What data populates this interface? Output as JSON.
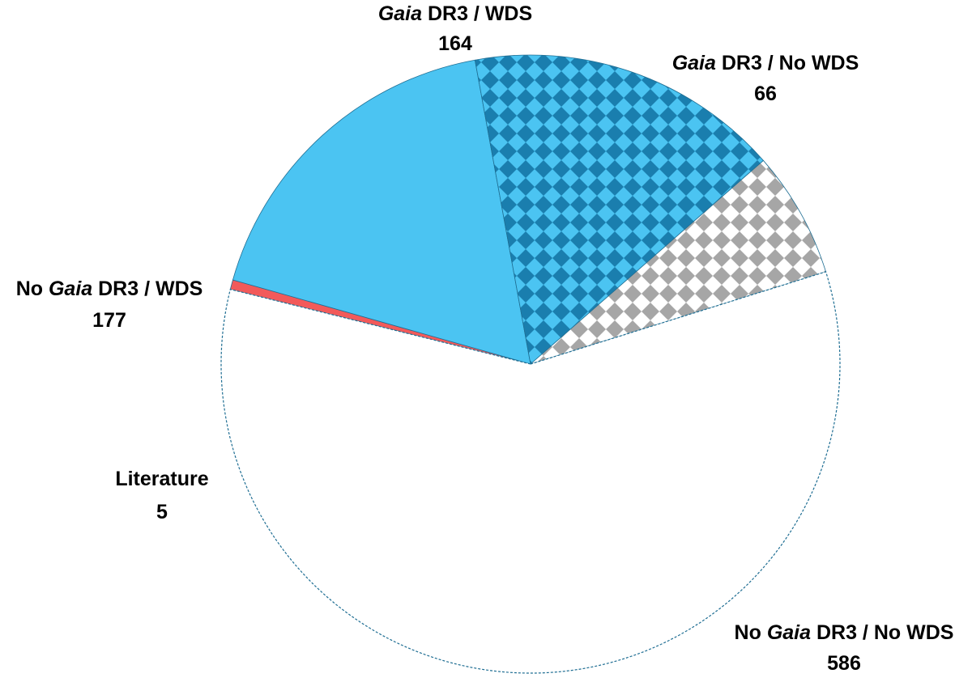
{
  "chart_data": {
    "type": "pie",
    "title": "",
    "start_angle_deg": -166,
    "direction": "clockwise",
    "slices": [
      {
        "key": "literature",
        "label_plain": "Literature",
        "label_parts": [
          {
            "text": "Literature",
            "italic": false
          }
        ],
        "value": 5,
        "value_label": "5",
        "color": "#f25a5a",
        "pattern": "solid"
      },
      {
        "key": "no-gaia-wds",
        "label_plain": "No Gaia DR3 / WDS",
        "label_parts": [
          {
            "text": "No ",
            "italic": false
          },
          {
            "text": "Gaia",
            "italic": true
          },
          {
            "text": " DR3 / WDS",
            "italic": false
          }
        ],
        "value": 177,
        "value_label": "177",
        "color": "#4bc4f2",
        "pattern": "solid"
      },
      {
        "key": "gaia-wds",
        "label_plain": "Gaia DR3 / WDS",
        "label_parts": [
          {
            "text": "Gaia",
            "italic": true
          },
          {
            "text": " DR3 / WDS",
            "italic": false
          }
        ],
        "value": 164,
        "value_label": "164",
        "color": "#4bc4f2",
        "pattern": "checker-dark-blue"
      },
      {
        "key": "gaia-no-wds",
        "label_plain": "Gaia DR3 / No WDS",
        "label_parts": [
          {
            "text": "Gaia",
            "italic": true
          },
          {
            "text": " DR3 / No WDS",
            "italic": false
          }
        ],
        "value": 66,
        "value_label": "66",
        "color": "#ffffff",
        "pattern": "checker-gray"
      },
      {
        "key": "no-gaia-no-wds",
        "label_plain": "No Gaia DR3 / No WDS",
        "label_parts": [
          {
            "text": "No ",
            "italic": false
          },
          {
            "text": "Gaia",
            "italic": true
          },
          {
            "text": " DR3 / No WDS",
            "italic": false
          }
        ],
        "value": 586,
        "value_label": "586",
        "color": "#ffffff",
        "pattern": "solid"
      }
    ],
    "colors": {
      "outline": "#1f6e93",
      "checker_dark_blue": "#1a7eae",
      "checker_gray": "#a6a6a6"
    },
    "legend": "none"
  }
}
